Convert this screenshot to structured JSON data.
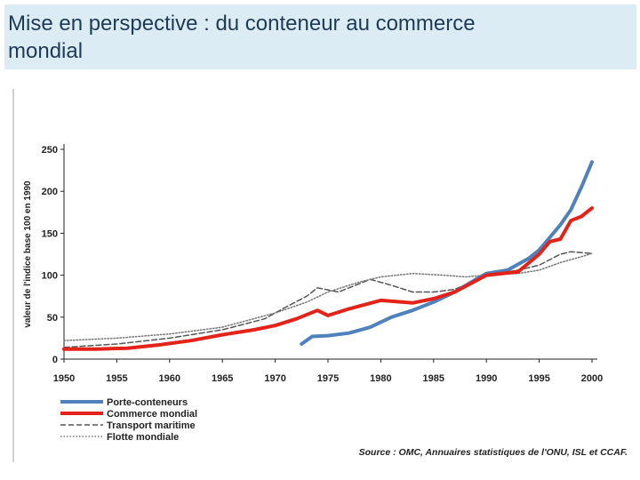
{
  "slide": {
    "title_line1": "Mise en perspective : du conteneur au commerce",
    "title_line2": "mondial"
  },
  "colors": {
    "porte_conteneurs": "#4f81bd",
    "commerce_mondial": "#e32219",
    "transport_maritime": "#555555",
    "flotte_mondiale": "#777777",
    "title_bg": "#dcecf4",
    "title_text": "#1f3a55"
  },
  "chart_data": {
    "type": "line",
    "title": "",
    "xlabel": "",
    "ylabel": "valeur de l'indice base 100 en 1990",
    "xlim": [
      1950,
      2000
    ],
    "ylim": [
      0,
      250
    ],
    "x_ticks": [
      1950,
      1955,
      1960,
      1965,
      1970,
      1975,
      1980,
      1985,
      1990,
      1995,
      2000
    ],
    "y_ticks": [
      0,
      50,
      100,
      150,
      200,
      250
    ],
    "grid": false,
    "legend_position": "bottom-left",
    "source": "Source : OMC, Annuaires statistiques de l'ONU, ISL et CCAF.",
    "series": [
      {
        "name": "Porte-conteneurs",
        "key": "porte_conteneurs",
        "style": "solid",
        "width": 4,
        "points": [
          [
            1972.5,
            18
          ],
          [
            1973.5,
            27
          ],
          [
            1975,
            28
          ],
          [
            1977,
            31
          ],
          [
            1979,
            38
          ],
          [
            1981,
            50
          ],
          [
            1983,
            58
          ],
          [
            1985,
            68
          ],
          [
            1987,
            80
          ],
          [
            1989,
            95
          ],
          [
            1990,
            102
          ],
          [
            1992,
            106
          ],
          [
            1994,
            120
          ],
          [
            1995,
            130
          ],
          [
            1996,
            145
          ],
          [
            1997,
            160
          ],
          [
            1998,
            178
          ],
          [
            1999,
            205
          ],
          [
            2000,
            235
          ]
        ]
      },
      {
        "name": "Commerce mondial",
        "key": "commerce_mondial",
        "style": "solid",
        "width": 4,
        "points": [
          [
            1950,
            12
          ],
          [
            1953,
            12
          ],
          [
            1956,
            13
          ],
          [
            1959,
            17
          ],
          [
            1962,
            22
          ],
          [
            1965,
            29
          ],
          [
            1968,
            35
          ],
          [
            1970,
            40
          ],
          [
            1972,
            48
          ],
          [
            1974,
            58
          ],
          [
            1975,
            52
          ],
          [
            1977,
            60
          ],
          [
            1980,
            70
          ],
          [
            1983,
            67
          ],
          [
            1985,
            72
          ],
          [
            1987,
            80
          ],
          [
            1990,
            100
          ],
          [
            1993,
            104
          ],
          [
            1995,
            125
          ],
          [
            1996,
            140
          ],
          [
            1997,
            143
          ],
          [
            1998,
            165
          ],
          [
            1999,
            170
          ],
          [
            2000,
            180
          ]
        ]
      },
      {
        "name": "Transport maritime",
        "key": "transport_maritime",
        "style": "dashed",
        "width": 1.5,
        "points": [
          [
            1950,
            14
          ],
          [
            1955,
            18
          ],
          [
            1960,
            25
          ],
          [
            1965,
            35
          ],
          [
            1969,
            48
          ],
          [
            1971,
            62
          ],
          [
            1973,
            75
          ],
          [
            1974,
            85
          ],
          [
            1976,
            80
          ],
          [
            1979,
            95
          ],
          [
            1981,
            88
          ],
          [
            1983,
            80
          ],
          [
            1985,
            80
          ],
          [
            1987,
            83
          ],
          [
            1990,
            100
          ],
          [
            1993,
            106
          ],
          [
            1995,
            112
          ],
          [
            1997,
            125
          ],
          [
            1998,
            128
          ],
          [
            2000,
            126
          ]
        ]
      },
      {
        "name": "Flotte mondiale",
        "key": "flotte_mondiale",
        "style": "dotted",
        "width": 1.5,
        "points": [
          [
            1950,
            22
          ],
          [
            1955,
            25
          ],
          [
            1960,
            30
          ],
          [
            1965,
            38
          ],
          [
            1970,
            55
          ],
          [
            1973,
            68
          ],
          [
            1975,
            80
          ],
          [
            1978,
            92
          ],
          [
            1980,
            98
          ],
          [
            1983,
            102
          ],
          [
            1986,
            100
          ],
          [
            1988,
            98
          ],
          [
            1990,
            100
          ],
          [
            1993,
            102
          ],
          [
            1995,
            106
          ],
          [
            1997,
            115
          ],
          [
            1999,
            122
          ],
          [
            2000,
            126
          ]
        ]
      }
    ]
  }
}
